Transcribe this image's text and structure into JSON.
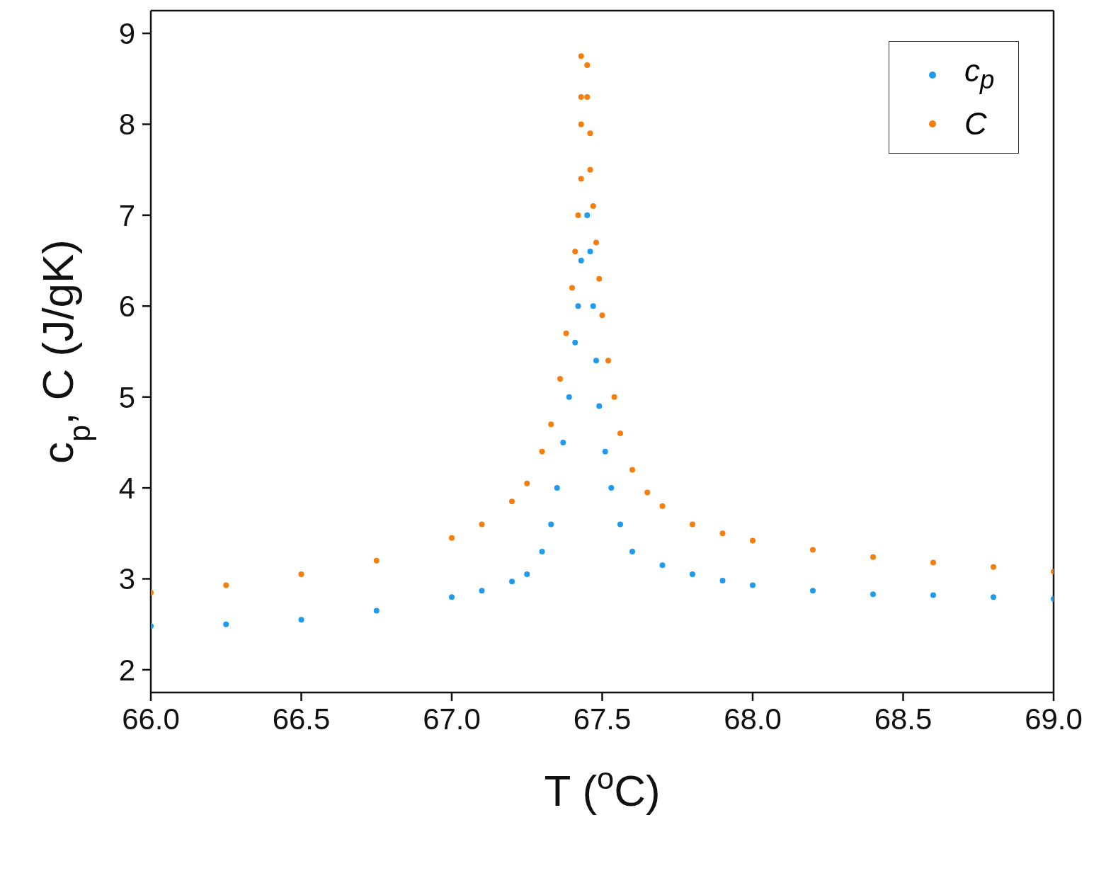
{
  "chart_data": {
    "type": "scatter",
    "xlabel": "T ($^{o}$C)",
    "ylabel": "c$_{p}$, C (J/gK)",
    "xlim": [
      66,
      69
    ],
    "ylim": [
      1.75,
      9.25
    ],
    "xticks": [
      {
        "value": 66,
        "label": "66.0"
      },
      {
        "value": 66.5,
        "label": "66.5"
      },
      {
        "value": 67,
        "label": "67.0"
      },
      {
        "value": 67.5,
        "label": "67.5"
      },
      {
        "value": 68,
        "label": "68.0"
      },
      {
        "value": 68.5,
        "label": "68.5"
      },
      {
        "value": 69,
        "label": "69.0"
      }
    ],
    "yticks": [
      2,
      3,
      4,
      5,
      6,
      7,
      8,
      9
    ],
    "grid": false,
    "legend": "top right",
    "marker": "circle",
    "series": [
      {
        "name": "c$_{p}$",
        "color": "#1e9bef",
        "x": [
          66.0,
          66.25,
          66.5,
          66.75,
          67.0,
          67.1,
          67.2,
          67.25,
          67.3,
          67.33,
          67.35,
          67.37,
          67.39,
          67.41,
          67.42,
          67.43,
          67.45,
          67.46,
          67.47,
          67.48,
          67.49,
          67.51,
          67.53,
          67.56,
          67.6,
          67.7,
          67.8,
          67.9,
          68.0,
          68.2,
          68.4,
          68.6,
          68.8,
          69.0
        ],
        "values": [
          2.48,
          2.5,
          2.55,
          2.65,
          2.8,
          2.87,
          2.97,
          3.05,
          3.3,
          3.6,
          4.0,
          4.5,
          5.0,
          5.6,
          6.0,
          6.5,
          7.0,
          6.6,
          6.0,
          5.4,
          4.9,
          4.4,
          4.0,
          3.6,
          3.3,
          3.15,
          3.05,
          2.98,
          2.93,
          2.87,
          2.83,
          2.82,
          2.8,
          2.78
        ]
      },
      {
        "name": "C",
        "color": "#f57f0e",
        "x": [
          66.0,
          66.25,
          66.5,
          66.75,
          67.0,
          67.1,
          67.2,
          67.25,
          67.3,
          67.33,
          67.36,
          67.38,
          67.4,
          67.41,
          67.42,
          67.43,
          67.43,
          67.43,
          67.43,
          67.45,
          67.45,
          67.46,
          67.46,
          67.47,
          67.48,
          67.49,
          67.5,
          67.52,
          67.54,
          67.56,
          67.6,
          67.65,
          67.7,
          67.8,
          67.9,
          68.0,
          68.2,
          68.4,
          68.6,
          68.8,
          69.0
        ],
        "values": [
          2.85,
          2.93,
          3.05,
          3.2,
          3.45,
          3.6,
          3.85,
          4.05,
          4.4,
          4.7,
          5.2,
          5.7,
          6.2,
          6.6,
          7.0,
          7.4,
          8.0,
          8.3,
          8.75,
          8.65,
          8.3,
          7.9,
          7.5,
          7.1,
          6.7,
          6.3,
          5.9,
          5.4,
          5.0,
          4.6,
          4.2,
          3.95,
          3.8,
          3.6,
          3.5,
          3.42,
          3.32,
          3.24,
          3.18,
          3.13,
          3.08
        ]
      }
    ]
  }
}
